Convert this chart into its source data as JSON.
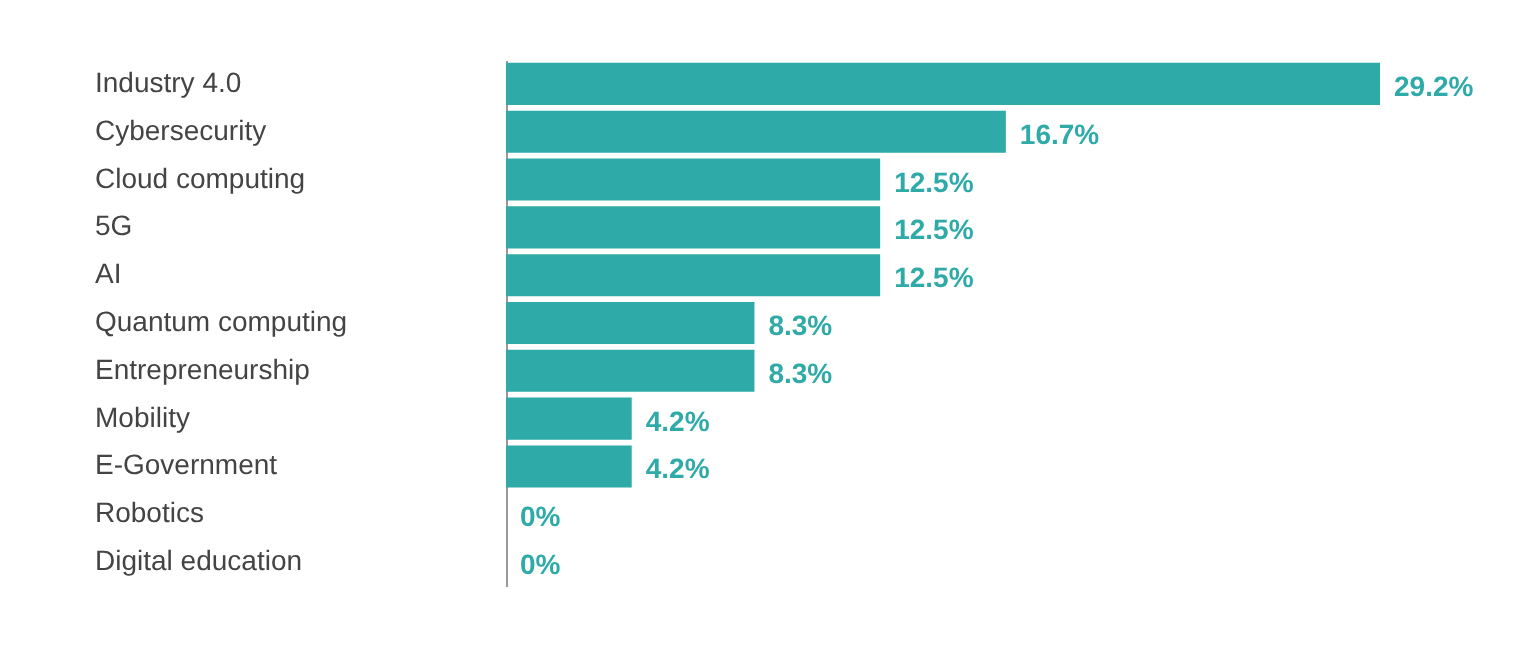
{
  "chart_data": {
    "type": "bar",
    "orientation": "horizontal",
    "categories": [
      "Industry 4.0",
      "Cybersecurity",
      "Cloud computing",
      "5G",
      "AI",
      "Quantum computing",
      "Entrepreneurship",
      "Mobility",
      "E-Government",
      "Robotics",
      "Digital education"
    ],
    "values": [
      29.2,
      16.7,
      12.5,
      12.5,
      12.5,
      8.3,
      8.3,
      4.2,
      4.2,
      0,
      0
    ],
    "value_labels": [
      "29.2%",
      "16.7%",
      "12.5%",
      "12.5%",
      "12.5%",
      "8.3%",
      "8.3%",
      "4.2%",
      "4.2%",
      "0%",
      "0%"
    ],
    "color": "#2eaaa8"
  }
}
